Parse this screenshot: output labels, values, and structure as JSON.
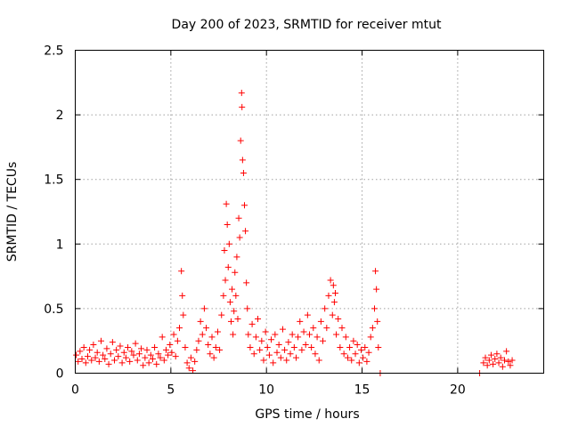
{
  "chart_data": {
    "type": "scatter",
    "title": "Day 200 of 2023, SRMTID for receiver mtut",
    "xlabel": "GPS time / hours",
    "ylabel": "SRMTID / TECUs",
    "xlim": [
      0,
      24.5
    ],
    "ylim": [
      0,
      2.5
    ],
    "x_ticks": [
      0,
      5,
      10,
      15,
      20
    ],
    "x_tick_labels": [
      "0",
      "5",
      "10",
      "15",
      "20"
    ],
    "y_ticks": [
      0,
      0.5,
      1,
      1.5,
      2,
      2.5
    ],
    "y_tick_labels": [
      "0",
      "0.5",
      "1",
      "1.5",
      "2",
      "2.5"
    ],
    "grid": true,
    "marker": "+",
    "series": [
      {
        "name": "SRMTID",
        "color": "#ff0000",
        "points": [
          [
            0.05,
            0.14
          ],
          [
            0.15,
            0.09
          ],
          [
            0.25,
            0.17
          ],
          [
            0.35,
            0.11
          ],
          [
            0.45,
            0.2
          ],
          [
            0.55,
            0.08
          ],
          [
            0.65,
            0.13
          ],
          [
            0.75,
            0.18
          ],
          [
            0.85,
            0.1
          ],
          [
            0.95,
            0.22
          ],
          [
            1.05,
            0.12
          ],
          [
            1.15,
            0.16
          ],
          [
            1.25,
            0.09
          ],
          [
            1.35,
            0.25
          ],
          [
            1.45,
            0.14
          ],
          [
            1.55,
            0.11
          ],
          [
            1.65,
            0.19
          ],
          [
            1.75,
            0.07
          ],
          [
            1.85,
            0.15
          ],
          [
            1.95,
            0.24
          ],
          [
            2.05,
            0.1
          ],
          [
            2.15,
            0.18
          ],
          [
            2.25,
            0.13
          ],
          [
            2.35,
            0.21
          ],
          [
            2.45,
            0.08
          ],
          [
            2.55,
            0.16
          ],
          [
            2.65,
            0.12
          ],
          [
            2.75,
            0.2
          ],
          [
            2.85,
            0.09
          ],
          [
            2.95,
            0.17
          ],
          [
            3.05,
            0.14
          ],
          [
            3.15,
            0.23
          ],
          [
            3.25,
            0.1
          ],
          [
            3.35,
            0.15
          ],
          [
            3.45,
            0.19
          ],
          [
            3.55,
            0.06
          ],
          [
            3.65,
            0.12
          ],
          [
            3.75,
            0.18
          ],
          [
            3.85,
            0.08
          ],
          [
            3.95,
            0.14
          ],
          [
            4.05,
            0.11
          ],
          [
            4.15,
            0.2
          ],
          [
            4.25,
            0.07
          ],
          [
            4.35,
            0.15
          ],
          [
            4.45,
            0.12
          ],
          [
            4.55,
            0.28
          ],
          [
            4.65,
            0.1
          ],
          [
            4.75,
            0.18
          ],
          [
            4.85,
            0.14
          ],
          [
            4.95,
            0.22
          ],
          [
            5.05,
            0.16
          ],
          [
            5.15,
            0.3
          ],
          [
            5.25,
            0.13
          ],
          [
            5.35,
            0.25
          ],
          [
            5.45,
            0.35
          ],
          [
            5.55,
            0.79
          ],
          [
            5.6,
            0.6
          ],
          [
            5.65,
            0.45
          ],
          [
            5.75,
            0.2
          ],
          [
            5.85,
            0.08
          ],
          [
            5.95,
            0.04
          ],
          [
            6.05,
            0.12
          ],
          [
            6.15,
            0.02
          ],
          [
            6.25,
            0.09
          ],
          [
            6.35,
            0.18
          ],
          [
            6.45,
            0.25
          ],
          [
            6.55,
            0.4
          ],
          [
            6.65,
            0.3
          ],
          [
            6.75,
            0.5
          ],
          [
            6.85,
            0.35
          ],
          [
            6.95,
            0.22
          ],
          [
            7.05,
            0.15
          ],
          [
            7.15,
            0.28
          ],
          [
            7.25,
            0.12
          ],
          [
            7.35,
            0.2
          ],
          [
            7.45,
            0.32
          ],
          [
            7.55,
            0.18
          ],
          [
            7.65,
            0.45
          ],
          [
            7.75,
            0.6
          ],
          [
            7.8,
            0.95
          ],
          [
            7.85,
            0.72
          ],
          [
            7.9,
            1.31
          ],
          [
            7.95,
            1.15
          ],
          [
            8.0,
            0.82
          ],
          [
            8.05,
            1.0
          ],
          [
            8.1,
            0.55
          ],
          [
            8.15,
            0.4
          ],
          [
            8.2,
            0.65
          ],
          [
            8.25,
            0.3
          ],
          [
            8.3,
            0.48
          ],
          [
            8.35,
            0.78
          ],
          [
            8.4,
            0.6
          ],
          [
            8.45,
            0.9
          ],
          [
            8.5,
            0.42
          ],
          [
            8.55,
            1.2
          ],
          [
            8.6,
            1.05
          ],
          [
            8.65,
            1.8
          ],
          [
            8.7,
            2.17
          ],
          [
            8.72,
            2.06
          ],
          [
            8.75,
            1.65
          ],
          [
            8.8,
            1.55
          ],
          [
            8.85,
            1.3
          ],
          [
            8.9,
            1.1
          ],
          [
            8.95,
            0.7
          ],
          [
            9.0,
            0.5
          ],
          [
            9.05,
            0.3
          ],
          [
            9.15,
            0.2
          ],
          [
            9.25,
            0.38
          ],
          [
            9.35,
            0.15
          ],
          [
            9.45,
            0.28
          ],
          [
            9.55,
            0.42
          ],
          [
            9.65,
            0.18
          ],
          [
            9.75,
            0.25
          ],
          [
            9.85,
            0.1
          ],
          [
            9.95,
            0.32
          ],
          [
            10.05,
            0.2
          ],
          [
            10.15,
            0.14
          ],
          [
            10.25,
            0.26
          ],
          [
            10.35,
            0.08
          ],
          [
            10.45,
            0.3
          ],
          [
            10.55,
            0.16
          ],
          [
            10.65,
            0.22
          ],
          [
            10.75,
            0.12
          ],
          [
            10.85,
            0.34
          ],
          [
            10.95,
            0.18
          ],
          [
            11.05,
            0.1
          ],
          [
            11.15,
            0.24
          ],
          [
            11.25,
            0.15
          ],
          [
            11.35,
            0.3
          ],
          [
            11.45,
            0.2
          ],
          [
            11.55,
            0.12
          ],
          [
            11.65,
            0.28
          ],
          [
            11.75,
            0.4
          ],
          [
            11.85,
            0.18
          ],
          [
            11.95,
            0.32
          ],
          [
            12.05,
            0.22
          ],
          [
            12.15,
            0.45
          ],
          [
            12.25,
            0.3
          ],
          [
            12.35,
            0.2
          ],
          [
            12.45,
            0.35
          ],
          [
            12.55,
            0.15
          ],
          [
            12.65,
            0.28
          ],
          [
            12.75,
            0.1
          ],
          [
            12.85,
            0.4
          ],
          [
            12.95,
            0.25
          ],
          [
            13.05,
            0.5
          ],
          [
            13.15,
            0.35
          ],
          [
            13.25,
            0.6
          ],
          [
            13.35,
            0.72
          ],
          [
            13.45,
            0.45
          ],
          [
            13.5,
            0.68
          ],
          [
            13.55,
            0.55
          ],
          [
            13.6,
            0.62
          ],
          [
            13.65,
            0.3
          ],
          [
            13.75,
            0.42
          ],
          [
            13.85,
            0.2
          ],
          [
            13.95,
            0.35
          ],
          [
            14.05,
            0.15
          ],
          [
            14.15,
            0.28
          ],
          [
            14.25,
            0.12
          ],
          [
            14.35,
            0.2
          ],
          [
            14.45,
            0.1
          ],
          [
            14.55,
            0.25
          ],
          [
            14.65,
            0.15
          ],
          [
            14.75,
            0.22
          ],
          [
            14.85,
            0.08
          ],
          [
            14.95,
            0.18
          ],
          [
            15.05,
            0.12
          ],
          [
            15.15,
            0.2
          ],
          [
            15.25,
            0.09
          ],
          [
            15.35,
            0.16
          ],
          [
            15.45,
            0.28
          ],
          [
            15.55,
            0.35
          ],
          [
            15.65,
            0.5
          ],
          [
            15.7,
            0.79
          ],
          [
            15.75,
            0.65
          ],
          [
            15.8,
            0.4
          ],
          [
            15.85,
            0.2
          ],
          [
            15.95,
            0.0
          ],
          [
            21.15,
            0.0
          ],
          [
            21.35,
            0.08
          ],
          [
            21.45,
            0.12
          ],
          [
            21.55,
            0.06
          ],
          [
            21.65,
            0.1
          ],
          [
            21.75,
            0.14
          ],
          [
            21.85,
            0.07
          ],
          [
            21.95,
            0.11
          ],
          [
            22.05,
            0.15
          ],
          [
            22.15,
            0.08
          ],
          [
            22.25,
            0.12
          ],
          [
            22.35,
            0.05
          ],
          [
            22.45,
            0.1
          ],
          [
            22.55,
            0.17
          ],
          [
            22.65,
            0.09
          ],
          [
            22.75,
            0.06
          ],
          [
            22.85,
            0.1
          ]
        ]
      }
    ]
  }
}
